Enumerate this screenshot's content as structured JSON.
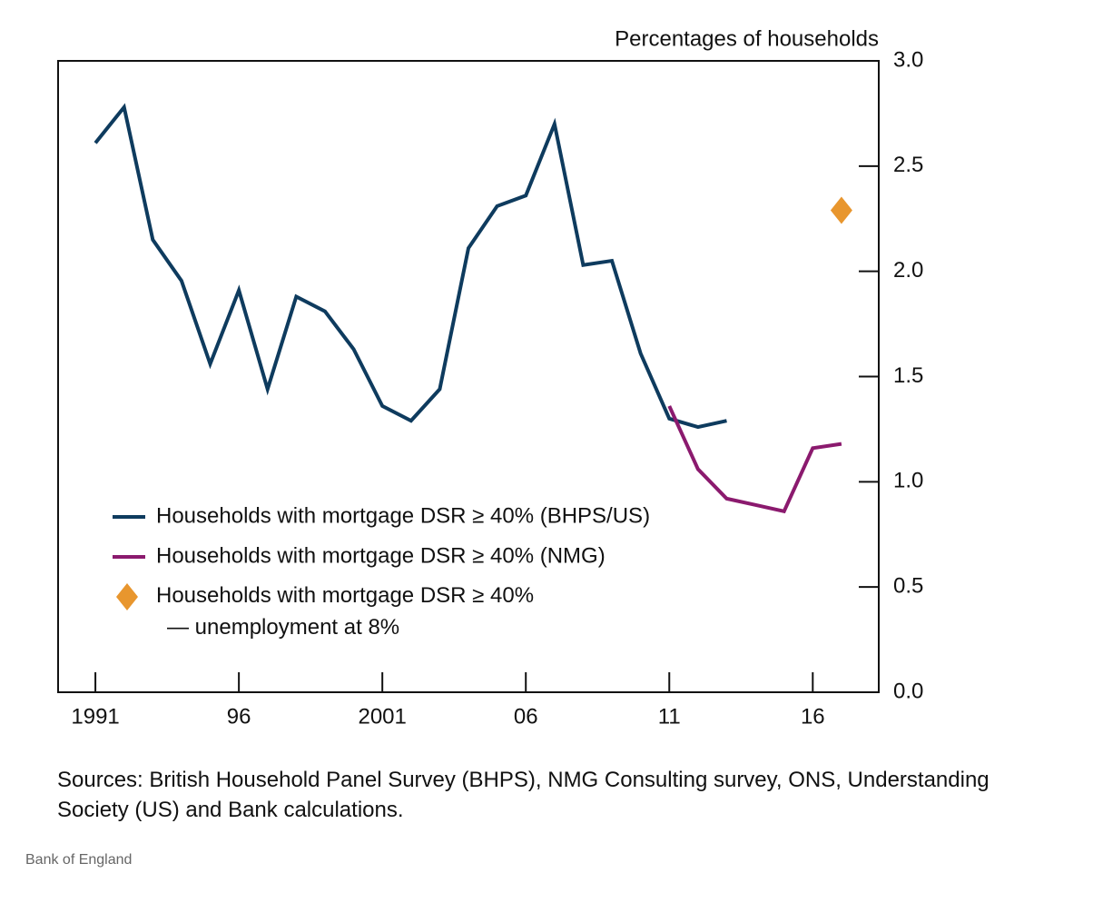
{
  "chart_data": {
    "type": "line",
    "title": "Percentages of households",
    "x": [
      1991,
      1992,
      1993,
      1994,
      1995,
      1996,
      1997,
      1998,
      1999,
      2000,
      2001,
      2002,
      2003,
      2004,
      2005,
      2006,
      2007,
      2008,
      2009,
      2010,
      2011,
      2012,
      2013,
      2014,
      2015,
      2016,
      2017
    ],
    "series": [
      {
        "name": "Households with mortgage DSR ≥ 40% (BHPS/US)",
        "color": "#0e3b5e",
        "marker": "line",
        "values": [
          2.61,
          2.78,
          2.15,
          1.955,
          1.56,
          1.91,
          1.44,
          1.88,
          1.81,
          1.63,
          1.36,
          1.29,
          1.44,
          2.11,
          2.31,
          2.36,
          2.7,
          2.03,
          2.05,
          1.61,
          1.3,
          1.26,
          1.29,
          null,
          null,
          null,
          null
        ]
      },
      {
        "name": "Households with mortgage DSR ≥ 40% (NMG)",
        "color": "#8b1a6e",
        "marker": "line",
        "values": [
          null,
          null,
          null,
          null,
          null,
          null,
          null,
          null,
          null,
          null,
          null,
          null,
          null,
          null,
          null,
          null,
          null,
          null,
          null,
          null,
          1.36,
          1.06,
          0.92,
          0.89,
          0.86,
          1.16,
          1.18
        ]
      },
      {
        "name": "Households with mortgage DSR ≥ 40%\n— unemployment at 8%",
        "color": "#e8962e",
        "marker": "diamond",
        "values": [
          null,
          null,
          null,
          null,
          null,
          null,
          null,
          null,
          null,
          null,
          null,
          null,
          null,
          null,
          null,
          null,
          null,
          null,
          null,
          null,
          null,
          null,
          null,
          null,
          null,
          null,
          2.29
        ]
      }
    ],
    "xlim": [
      1989.7,
      2018.3
    ],
    "xticks": [
      1991,
      {
        "value": 1996,
        "label": "96"
      },
      2001,
      {
        "value": 2006,
        "label": "06"
      },
      {
        "value": 2011,
        "label": "11"
      },
      {
        "value": 2016,
        "label": "16"
      }
    ],
    "ylim": [
      0,
      3
    ],
    "yticks": [
      {
        "value": 0,
        "label": "0.0"
      },
      0.5,
      {
        "value": 1,
        "label": "1.0"
      },
      1.5,
      {
        "value": 2,
        "label": "2.0"
      },
      2.5,
      {
        "value": 3,
        "label": "3.0"
      }
    ],
    "y_axis_side": "right",
    "legend": "lower-left",
    "source": "Sources:  British Household Panel Survey (BHPS), NMG Consulting survey, ONS, Understanding Society (US) and Bank calculations.",
    "footer": "Bank of England"
  }
}
